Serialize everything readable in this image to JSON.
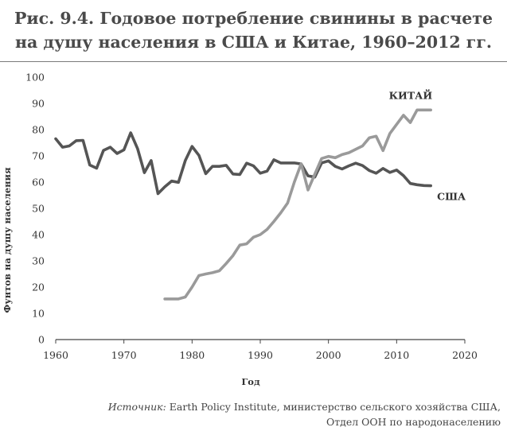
{
  "chart_data": {
    "type": "line",
    "title_lines": [
      "Рис. 9.4. Годовое потребление свинины в расчете",
      "на душу населения в США и Китае, 1960–2012 гг."
    ],
    "xlabel": "Год",
    "ylabel": "Фунтов на душу населения",
    "xlim": [
      1960,
      2020
    ],
    "ylim": [
      0,
      100
    ],
    "x_ticks": [
      1960,
      1970,
      1980,
      1990,
      2000,
      2010,
      2020
    ],
    "y_ticks": [
      0,
      10,
      20,
      30,
      40,
      50,
      60,
      70,
      80,
      90,
      100
    ],
    "grid": false,
    "series": [
      {
        "name": "США",
        "color": "#555555",
        "x": [
          1960,
          1961,
          1962,
          1963,
          1964,
          1965,
          1966,
          1967,
          1968,
          1969,
          1970,
          1971,
          1972,
          1973,
          1974,
          1975,
          1976,
          1977,
          1978,
          1979,
          1980,
          1981,
          1982,
          1983,
          1984,
          1985,
          1986,
          1987,
          1988,
          1989,
          1990,
          1991,
          1992,
          1993,
          1994,
          1995,
          1996,
          1997,
          1998,
          1999,
          2000,
          2001,
          2002,
          2003,
          2004,
          2005,
          2006,
          2007,
          2008,
          2009,
          2010,
          2011,
          2012,
          2013,
          2014,
          2015
        ],
        "y": [
          76.5,
          73.3,
          73.8,
          75.8,
          75.9,
          66.5,
          65.3,
          72.1,
          73.3,
          70.9,
          72.3,
          78.8,
          72.8,
          63.6,
          68.2,
          55.6,
          58.2,
          60.4,
          59.9,
          68.2,
          73.6,
          70.2,
          63.2,
          66.0,
          66.0,
          66.4,
          63.1,
          62.9,
          67.2,
          66.2,
          63.4,
          64.2,
          68.5,
          67.3,
          67.3,
          67.3,
          66.9,
          62.4,
          61.9,
          67.3,
          68.1,
          66.0,
          65.0,
          66.2,
          67.2,
          66.3,
          64.4,
          63.4,
          65.2,
          63.7,
          64.6,
          62.5,
          59.5,
          59.0,
          58.7,
          58.6
        ],
        "label_text": "США"
      },
      {
        "name": "КИТАЙ",
        "color": "#9a9a9a",
        "x": [
          1976,
          1977,
          1978,
          1979,
          1980,
          1981,
          1982,
          1983,
          1984,
          1985,
          1986,
          1987,
          1988,
          1989,
          1990,
          1991,
          1992,
          1993,
          1994,
          1995,
          1996,
          1997,
          1998,
          1999,
          2000,
          2001,
          2002,
          2003,
          2004,
          2005,
          2006,
          2007,
          2008,
          2009,
          2010,
          2011,
          2012,
          2013,
          2014,
          2015
        ],
        "y": [
          15.5,
          15.5,
          15.5,
          16.2,
          20.0,
          24.4,
          25.0,
          25.5,
          26.2,
          29.0,
          32.0,
          36.0,
          36.5,
          39.0,
          40.0,
          42.0,
          45.0,
          48.3,
          52.0,
          60.0,
          67.0,
          57.0,
          63.0,
          69.0,
          69.8,
          69.3,
          70.5,
          71.2,
          72.5,
          73.8,
          76.9,
          77.5,
          72.0,
          78.5,
          82.0,
          85.5,
          82.7,
          87.5,
          87.5,
          87.5
        ],
        "label_text": "КИТАЙ"
      }
    ]
  },
  "source": {
    "label": "Источник:",
    "line1": " Earth Policy Institute, министерство сельского хозяйства США,",
    "line2": "Отдел ООН по народонаселению"
  }
}
